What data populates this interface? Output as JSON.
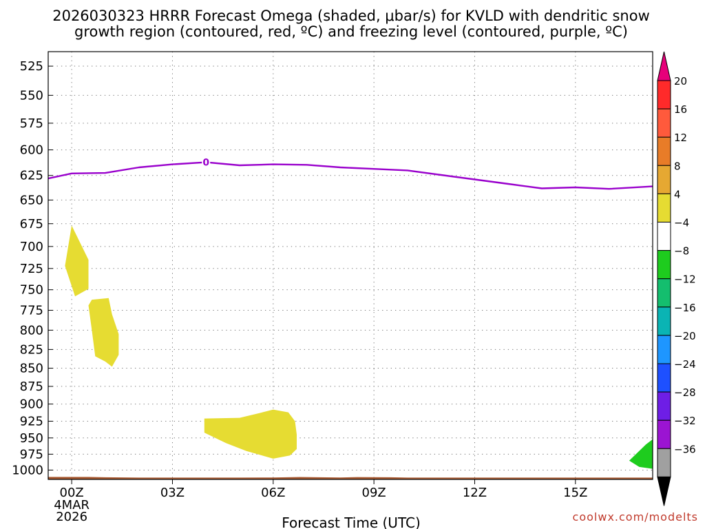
{
  "title": {
    "line1": "2026030323 HRRR Forecast Omega (shaded, μbar/s) for KVLD with dendritic snow",
    "line2": "growth region (contoured, red, ºC) and freezing level (contoured, purple, ºC)"
  },
  "credit": "coolwx.com/modelts",
  "chart_data": {
    "type": "time-height",
    "xlabel": "Forecast Time (UTC)",
    "x_range_hours": [
      -0.7,
      17.3
    ],
    "x_ticks": [
      {
        "hour": 0,
        "label": "00Z"
      },
      {
        "hour": 3,
        "label": "03Z"
      },
      {
        "hour": 6,
        "label": "06Z"
      },
      {
        "hour": 9,
        "label": "09Z"
      },
      {
        "hour": 12,
        "label": "12Z"
      },
      {
        "hour": 15,
        "label": "15Z"
      }
    ],
    "x_date_label": {
      "hour": 0,
      "lines": [
        "4MAR",
        "2026"
      ]
    },
    "y_range_hpa": [
      1015,
      513
    ],
    "y_ticks": [
      525,
      550,
      575,
      600,
      625,
      650,
      675,
      700,
      725,
      750,
      775,
      800,
      825,
      850,
      875,
      900,
      925,
      950,
      975,
      1000
    ],
    "grid": true,
    "freezing_level": {
      "label": "0",
      "label_hour": 4.0,
      "color": "#9900cc",
      "points": [
        [
          -0.7,
          628
        ],
        [
          0,
          623
        ],
        [
          1,
          622.5
        ],
        [
          2,
          617
        ],
        [
          3,
          614
        ],
        [
          4,
          612
        ],
        [
          5,
          615
        ],
        [
          6,
          614
        ],
        [
          7,
          614.5
        ],
        [
          8,
          617
        ],
        [
          9,
          618.5
        ],
        [
          10,
          620
        ],
        [
          11,
          624.5
        ],
        [
          12,
          629
        ],
        [
          13,
          633.5
        ],
        [
          14,
          638
        ],
        [
          15,
          637
        ],
        [
          16,
          638.5
        ],
        [
          17.3,
          636
        ]
      ]
    },
    "omega_regions": [
      {
        "range": "4 to 8",
        "color": "#e6dc32",
        "points": [
          [
            0,
            677
          ],
          [
            0.5,
            715
          ],
          [
            0.5,
            749
          ],
          [
            0.1,
            758
          ],
          [
            -0.2,
            722
          ]
        ]
      },
      {
        "range": "4 to 8",
        "color": "#e6dc32",
        "points": [
          [
            0.6,
            762
          ],
          [
            1.1,
            760
          ],
          [
            1.2,
            780
          ],
          [
            1.4,
            805
          ],
          [
            1.4,
            832
          ],
          [
            1.2,
            848
          ],
          [
            1.0,
            841
          ],
          [
            0.7,
            834
          ],
          [
            0.6,
            800
          ],
          [
            0.5,
            769
          ]
        ]
      },
      {
        "range": "4 to 8",
        "color": "#e6dc32",
        "points": [
          [
            3.95,
            921
          ],
          [
            5.0,
            920
          ],
          [
            5.6,
            913
          ],
          [
            6.0,
            908
          ],
          [
            6.45,
            912
          ],
          [
            6.65,
            925
          ],
          [
            6.7,
            945
          ],
          [
            6.7,
            967
          ],
          [
            6.5,
            977
          ],
          [
            6.0,
            982
          ],
          [
            5.2,
            970
          ],
          [
            4.6,
            958
          ],
          [
            3.95,
            942
          ]
        ]
      },
      {
        "range": "-8 to -4",
        "color": "#1ecc1e",
        "points": [
          [
            17.3,
            952
          ],
          [
            17.1,
            960
          ],
          [
            16.8,
            975
          ],
          [
            16.6,
            985
          ],
          [
            16.9,
            995
          ],
          [
            17.3,
            998
          ]
        ]
      }
    ],
    "terrain": {
      "color": "#a85a32",
      "points": [
        [
          -0.7,
          1011
        ],
        [
          0.5,
          1011
        ],
        [
          1.0,
          1011.6
        ],
        [
          2.0,
          1012.1
        ],
        [
          3.0,
          1012.1
        ],
        [
          4.0,
          1012.1
        ],
        [
          5.0,
          1012.1
        ],
        [
          6.0,
          1011.9
        ],
        [
          6.8,
          1011.1
        ],
        [
          7.4,
          1011.6
        ],
        [
          8.0,
          1012
        ],
        [
          8.5,
          1011.2
        ],
        [
          9.5,
          1011.6
        ],
        [
          10.0,
          1012.1
        ],
        [
          17.3,
          1012.1
        ]
      ]
    },
    "colorbar": {
      "top_color": "#e6007a",
      "bottom_color": "#000000",
      "boxes": [
        "#ff2a2a",
        "#ff5a3c",
        "#e87c28",
        "#e6a832",
        "#e6dc32",
        "#ffffff",
        "#1ecc1e",
        "#14be6e",
        "#0ab4b4",
        "#1e96ff",
        "#1e50ff",
        "#6e1ee6",
        "#9b14d2",
        "#a0a0a0"
      ],
      "labels": [
        "20",
        "16",
        "12",
        "8",
        "4",
        "−4",
        "−8",
        "−12",
        "−16",
        "−20",
        "−24",
        "−28",
        "−32",
        "−36"
      ]
    }
  }
}
